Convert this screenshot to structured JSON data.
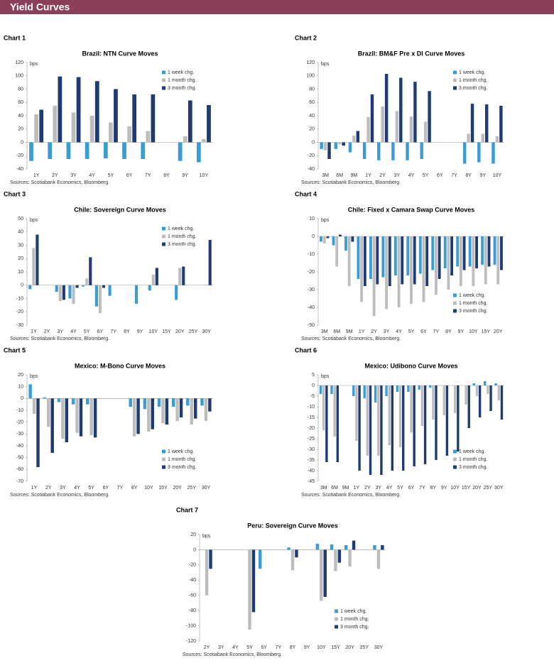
{
  "header": {
    "title": "Yield Curves"
  },
  "chart_data": [
    {
      "type": "bar",
      "label": "Chart 1",
      "title": "Brazil: NTN Curve Moves",
      "unit": "bps",
      "source": "Sources: Scotiabank Economics, Bloomberg.",
      "legend": "upper right",
      "categories": [
        "1Y",
        "2Y",
        "3Y",
        "4Y",
        "5Y",
        "6Y",
        "7Y",
        "8Y",
        "9Y",
        "10Y"
      ],
      "ylim": [
        -40,
        120
      ],
      "yticks": [
        -40,
        -20,
        0,
        20,
        40,
        60,
        80,
        100,
        120
      ],
      "series": [
        {
          "name": "1 week chg.",
          "color": "#3b9bd3",
          "values": [
            -28,
            -25,
            -25,
            -25,
            -24,
            -25,
            -25,
            null,
            -28,
            -30
          ]
        },
        {
          "name": "1 month chg.",
          "color": "#bdbdbd",
          "values": [
            42,
            55,
            45,
            40,
            30,
            24,
            17,
            null,
            9,
            5
          ]
        },
        {
          "name": "3 month chg.",
          "color": "#1f3b73",
          "values": [
            49,
            99,
            98,
            92,
            80,
            72,
            72,
            null,
            63,
            56
          ]
        }
      ]
    },
    {
      "type": "bar",
      "label": "Chart 2",
      "title": "Brazil: BM&F Pre x DI Curve Moves",
      "unit": "bps",
      "source": "Sources: Scotiabank Economics, Bloomberg.",
      "legend": "upper right",
      "categories": [
        "3M",
        "6M",
        "9M",
        "1Y",
        "2Y",
        "3Y",
        "4Y",
        "5Y",
        "6Y",
        "7Y",
        "8Y",
        "9Y",
        "10Y"
      ],
      "ylim": [
        -40,
        120
      ],
      "yticks": [
        -40,
        -20,
        0,
        20,
        40,
        60,
        80,
        100,
        120
      ],
      "series": [
        {
          "name": "1 week chg.",
          "color": "#3b9bd3",
          "values": [
            -10,
            -10,
            -15,
            -25,
            -27,
            -27,
            -27,
            -25,
            null,
            null,
            -32,
            -30,
            -32
          ]
        },
        {
          "name": "1 month chg.",
          "color": "#bdbdbd",
          "values": [
            -12,
            -3,
            10,
            38,
            54,
            47,
            39,
            31,
            null,
            null,
            13,
            13,
            9
          ]
        },
        {
          "name": "3 month chg.",
          "color": "#1f3b73",
          "values": [
            -25,
            -5,
            17,
            72,
            103,
            97,
            91,
            77,
            null,
            null,
            58,
            57,
            55
          ]
        }
      ]
    },
    {
      "type": "bar",
      "label": "Chart 3",
      "title": "Chile: Sovereign Curve Moves",
      "unit": "bps",
      "source": "Sources: Scotiabank Economics, Bloomberg.",
      "legend": "upper right",
      "categories": [
        "1Y",
        "2Y",
        "3Y",
        "4Y",
        "5Y",
        "6Y",
        "7Y",
        "8Y",
        "9Y",
        "10Y",
        "15Y",
        "20Y",
        "25Y",
        "30Y"
      ],
      "ylim": [
        -30,
        50
      ],
      "yticks": [
        -30,
        -20,
        -10,
        0,
        10,
        20,
        30,
        40,
        50
      ],
      "series": [
        {
          "name": "1 week chg.",
          "color": "#3b9bd3",
          "values": [
            -3,
            null,
            -5,
            -10,
            -1,
            -16,
            -8,
            null,
            -14,
            -4,
            null,
            -11,
            null,
            null
          ]
        },
        {
          "name": "1 month chg.",
          "color": "#bdbdbd",
          "values": [
            28,
            null,
            -12,
            -14,
            5,
            -21,
            null,
            null,
            null,
            8,
            null,
            13,
            null,
            null
          ]
        },
        {
          "name": "3 month chg.",
          "color": "#1f3b73",
          "values": [
            38,
            null,
            -11,
            -2,
            21,
            -2,
            null,
            null,
            null,
            13,
            null,
            14,
            null,
            34
          ]
        }
      ]
    },
    {
      "type": "bar",
      "label": "Chart 4",
      "title": "Chile: Fixed x Camara Swap Curve Moves",
      "unit": "bps",
      "source": "Sources: Scotiabank Economics, Bloomberg.",
      "legend": "lower right",
      "categories": [
        "3M",
        "6M",
        "9M",
        "1Y",
        "2Y",
        "3Y",
        "4Y",
        "5Y",
        "6Y",
        "7Y",
        "8Y",
        "9Y",
        "10Y",
        "15Y",
        "20Y"
      ],
      "ylim": [
        -50,
        10
      ],
      "yticks": [
        -50,
        -40,
        -30,
        -20,
        -10,
        0,
        10
      ],
      "series": [
        {
          "name": "1 week chg.",
          "color": "#3b9bd3",
          "values": [
            -3,
            -5,
            -8,
            -24,
            -24,
            -23,
            -22,
            -22,
            -21,
            -19,
            -18,
            -17,
            -17,
            -16,
            -16
          ]
        },
        {
          "name": "1 month chg.",
          "color": "#bdbdbd",
          "values": [
            -4,
            -17,
            -28,
            -37,
            -45,
            -41,
            -40,
            -38,
            -37,
            -33,
            -30,
            -28,
            -28,
            -27,
            -27
          ]
        },
        {
          "name": "3 month chg.",
          "color": "#1f3b73",
          "values": [
            -1,
            1,
            -3,
            -28,
            -27,
            -28,
            -27,
            -27,
            -28,
            -24,
            -22,
            -19,
            -18,
            -17,
            -19
          ]
        }
      ]
    },
    {
      "type": "bar",
      "label": "Chart 5",
      "title": "Mexico: M-Bono Curve Moves",
      "unit": "bps",
      "source": "Sources: Scotiabank Economics, Bloomberg.",
      "legend": "lower right",
      "categories": [
        "1Y",
        "2Y",
        "3Y",
        "4Y",
        "5Y",
        "6Y",
        "7Y",
        "8Y",
        "10Y",
        "15Y",
        "20Y",
        "25Y",
        "30Y"
      ],
      "ylim": [
        -70,
        20
      ],
      "yticks": [
        -70,
        -60,
        -50,
        -40,
        -30,
        -20,
        -10,
        0,
        10,
        20
      ],
      "series": [
        {
          "name": "1 week chg.",
          "color": "#3b9bd3",
          "values": [
            12,
            1,
            -3,
            -5,
            -5,
            null,
            null,
            -7,
            -9,
            -7,
            -7,
            -6,
            -6
          ]
        },
        {
          "name": "1 month chg.",
          "color": "#bdbdbd",
          "values": [
            -13,
            -24,
            -34,
            -29,
            -31,
            null,
            null,
            -32,
            -28,
            -21,
            -19,
            -22,
            -19
          ]
        },
        {
          "name": "3 month chg.",
          "color": "#1f3b73",
          "values": [
            -58,
            -46,
            -37,
            -32,
            -33,
            null,
            null,
            -30,
            -26,
            -22,
            -16,
            -17,
            -11
          ]
        }
      ]
    },
    {
      "type": "bar",
      "label": "Chart 6",
      "title": "Mexico: Udibono Curve Moves",
      "unit": "bps",
      "source": "Sources: Scotiabank Economics, Bloomberg.",
      "legend": "lower right",
      "categories": [
        "3M",
        "6M",
        "9M",
        "1Y",
        "2Y",
        "3Y",
        "4Y",
        "5Y",
        "6Y",
        "7Y",
        "8Y",
        "9Y",
        "10Y",
        "15Y",
        "20Y",
        "25Y",
        "30Y"
      ],
      "ylim": [
        -45,
        5
      ],
      "yticks": [
        -45,
        -40,
        -35,
        -30,
        -25,
        -20,
        -15,
        -10,
        -5,
        0,
        5
      ],
      "series": [
        {
          "name": "1 week chg.",
          "color": "#3b9bd3",
          "values": [
            -4,
            -4,
            null,
            -5,
            -6,
            -8,
            -5,
            -3,
            -3,
            -2,
            -1,
            0,
            0,
            0,
            1,
            2,
            1
          ]
        },
        {
          "name": "1 month chg.",
          "color": "#bdbdbd",
          "values": [
            -21,
            -24,
            null,
            -26,
            -33,
            -33,
            -28,
            -29,
            -22,
            -19,
            -16,
            -14,
            -13,
            -9,
            -5,
            -4,
            -7
          ]
        },
        {
          "name": "3 month chg.",
          "color": "#1f3b73",
          "values": [
            -36,
            -36,
            null,
            -40,
            -42,
            -42,
            -40,
            -40,
            -38,
            -37,
            -35,
            -33,
            -31,
            -20,
            -15,
            -12,
            -16
          ]
        }
      ]
    },
    {
      "type": "bar",
      "label": "Chart 7",
      "title": "Peru: Sovereign Curve Moves",
      "unit": "bps",
      "source": "Sources: Scotiabank Economics, Bloomberg.",
      "legend": "lower right",
      "categories": [
        "2Y",
        "3Y",
        "4Y",
        "5Y",
        "6Y",
        "7Y",
        "8Y",
        "9Y",
        "10Y",
        "15Y",
        "20Y",
        "25Y",
        "30Y"
      ],
      "ylim": [
        -120,
        20
      ],
      "yticks": [
        -120,
        -100,
        -80,
        -60,
        -40,
        -20,
        0,
        20
      ],
      "series": [
        {
          "name": "1 week chg.",
          "color": "#3b9bd3",
          "values": [
            null,
            null,
            null,
            null,
            -25,
            null,
            3,
            null,
            8,
            7,
            6,
            null,
            6
          ]
        },
        {
          "name": "1 month chg.",
          "color": "#bdbdbd",
          "values": [
            -60,
            null,
            null,
            -105,
            null,
            null,
            -27,
            null,
            -67,
            -28,
            -22,
            null,
            -25
          ]
        },
        {
          "name": "3 month chg.",
          "color": "#1f3b73",
          "values": [
            -25,
            null,
            null,
            -82,
            null,
            null,
            -10,
            null,
            -62,
            -17,
            12,
            null,
            6
          ]
        }
      ]
    }
  ]
}
